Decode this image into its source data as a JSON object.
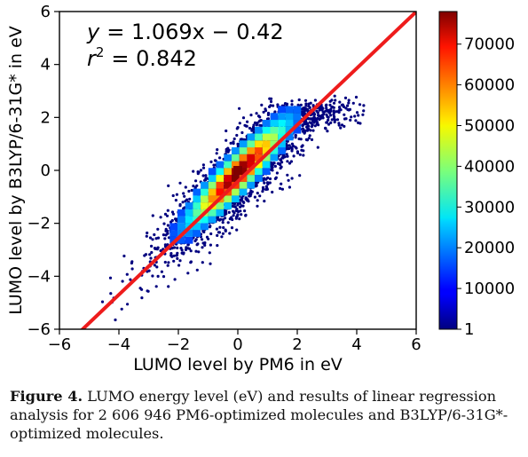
{
  "chart_data": {
    "type": "heatmap",
    "title": "",
    "xlabel": "LUMO level by PM6 in eV",
    "ylabel": "LUMO level by B3LYP/6-31G* in eV",
    "xlim": [
      -6,
      6
    ],
    "ylim": [
      -6,
      6
    ],
    "x_ticks": [
      "−6",
      "−4",
      "−2",
      "0",
      "2",
      "4",
      "6"
    ],
    "y_ticks": [
      "−6",
      "−4",
      "−2",
      "0",
      "2",
      "4",
      "6"
    ],
    "colorbar": {
      "range": [
        1,
        78000
      ],
      "ticks": [
        "1",
        "10000",
        "20000",
        "30000",
        "40000",
        "50000",
        "60000",
        "70000"
      ],
      "colormap": "jet"
    },
    "regression": {
      "slope": 1.069,
      "intercept": -0.42,
      "r2": 0.842,
      "color": "#ee1c1c",
      "equation_lhs": "y",
      "equation_rhs": "= 1.069x − 0.42",
      "r2_lhs": "r",
      "r2_exp": "2",
      "r2_rhs": "= 0.842"
    },
    "density_peak": {
      "x": 0.0,
      "y": 0.0,
      "count": 78000
    },
    "n_molecules": 2606946,
    "grid": false
  },
  "caption": {
    "label": "Figure 4.",
    "text": " LUMO energy level (eV) and results of linear regression analysis for 2 606 946 PM6-optimized molecules and B3LYP/6-31G*-optimized molecules."
  }
}
